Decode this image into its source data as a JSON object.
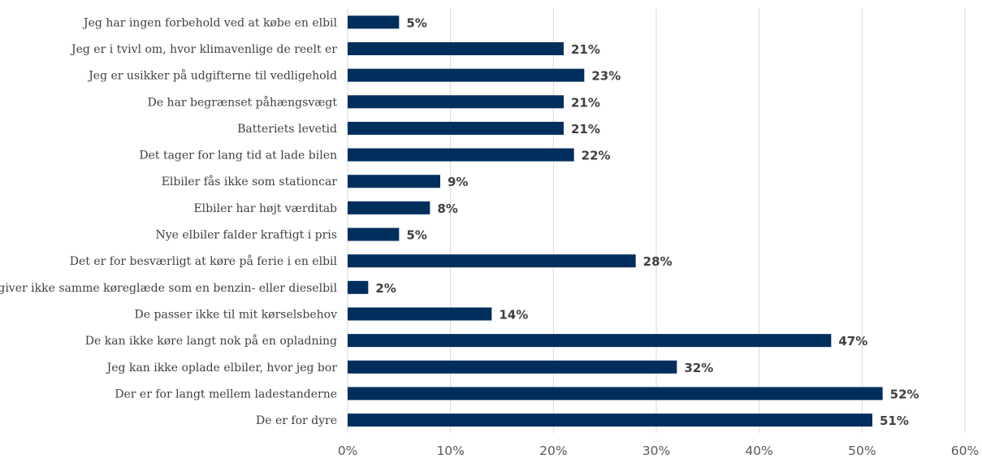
{
  "chart_data": {
    "type": "bar",
    "orientation": "horizontal",
    "categories": [
      "Jeg har ingen forbehold ved at købe en elbil",
      "Jeg er i tvivl om, hvor klimavenlige de reelt er",
      "Jeg er usikker på udgifterne til vedligehold",
      "De har begrænset påhængsvægt",
      "Batteriets levetid",
      "Det tager for lang tid at lade bilen",
      "Elbiler fås ikke som stationcar",
      "Elbiler har højt værditab",
      "Nye elbiler falder kraftigt i pris",
      "Det er for besværligt at køre på ferie i en elbil",
      "De giver ikke samme køreglæde som en benzin- eller dieselbil",
      "De passer ikke til mit kørselsbehov",
      "De kan ikke køre langt nok på en opladning",
      "Jeg kan ikke oplade elbiler, hvor jeg bor",
      "Der er for langt mellem ladestanderne",
      "De er for dyre"
    ],
    "values": [
      5,
      21,
      23,
      21,
      21,
      22,
      9,
      8,
      5,
      28,
      2,
      14,
      47,
      32,
      52,
      51
    ],
    "data_labels": [
      "5%",
      "21%",
      "23%",
      "21%",
      "21%",
      "22%",
      "9%",
      "8%",
      "5%",
      "28%",
      "2%",
      "14%",
      "47%",
      "32%",
      "52%",
      "51%"
    ],
    "xlim": [
      0,
      60
    ],
    "x_ticks": [
      0,
      10,
      20,
      30,
      40,
      50,
      60
    ],
    "x_tick_labels": [
      "0%",
      "10%",
      "20%",
      "30%",
      "40%",
      "50%",
      "60%"
    ],
    "grid": true,
    "legend": false,
    "title": "",
    "xlabel": "",
    "ylabel": "",
    "bar_color": "#002f5e"
  }
}
